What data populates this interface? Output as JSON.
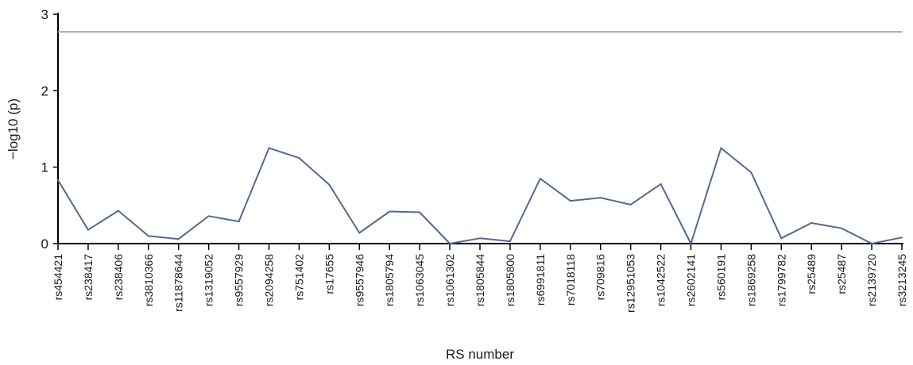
{
  "chart_data": {
    "type": "line",
    "title": "",
    "xlabel": "RS number",
    "ylabel": "−log10 (p)",
    "ylim": [
      0,
      3
    ],
    "yticks": [
      0,
      1,
      2,
      3
    ],
    "grid": false,
    "categories": [
      "rs454421",
      "rs238417",
      "rs238406",
      "rs3810366",
      "rs11878644",
      "rs1319052",
      "rs9557929",
      "rs2094258",
      "rs751402",
      "rs17655",
      "rs9557946",
      "rs1805794",
      "rs1063045",
      "rs1061302",
      "rs1805844",
      "rs1805800",
      "rs6991811",
      "rs7018118",
      "rs709816",
      "rs12951053",
      "rs1042522",
      "rs2602141",
      "rs560191",
      "rs1869258",
      "rs1799782",
      "rs25489",
      "rs25487",
      "rs2139720",
      "rs3213245"
    ],
    "series": [
      {
        "values": [
          0.83,
          0.18,
          0.43,
          0.1,
          0.06,
          0.36,
          0.29,
          1.25,
          1.12,
          0.77,
          0.14,
          0.42,
          0.41,
          0.0,
          0.07,
          0.03,
          0.85,
          0.56,
          0.6,
          0.51,
          0.78,
          0.0,
          1.25,
          0.93,
          0.07,
          0.27,
          0.2,
          0.0,
          0.08
        ],
        "color": "#55698f"
      }
    ],
    "reference_lines": [
      {
        "y": 2.77,
        "color": "#aaaaaa"
      }
    ],
    "colors": {
      "axis": "#000000"
    }
  }
}
